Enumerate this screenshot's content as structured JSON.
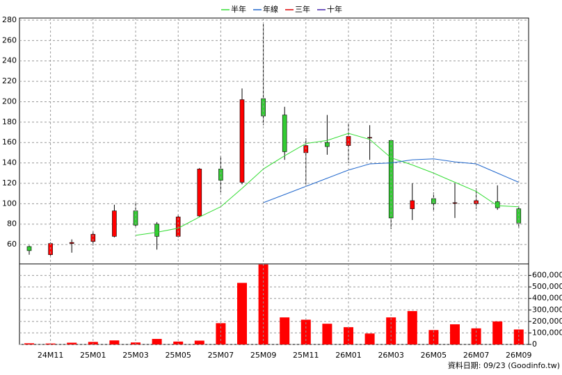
{
  "chart_data": [
    {
      "type": "candlestick",
      "open": [
        58,
        50,
        61,
        63,
        68,
        93,
        80,
        68,
        88,
        134,
        121,
        203,
        187,
        150,
        160,
        157,
        165,
        162,
        95,
        105,
        101,
        100,
        102,
        95
      ],
      "high": [
        59,
        62,
        65,
        73,
        99,
        101,
        82,
        89,
        135,
        147,
        213,
        276,
        195,
        164,
        187,
        180,
        177,
        162,
        120,
        111,
        120,
        115,
        118,
        97
      ],
      "low": [
        50,
        49,
        52,
        59,
        67,
        77,
        55,
        67,
        87,
        111,
        119,
        177,
        143,
        119,
        148,
        140,
        143,
        75,
        84,
        93,
        86,
        95,
        94,
        76
      ],
      "close": [
        54,
        61,
        62,
        70,
        93,
        79,
        68,
        87,
        134,
        123,
        202,
        186,
        151,
        157,
        156,
        166,
        165,
        86,
        103,
        100,
        101,
        103,
        96,
        81
      ],
      "up_color": "#ff0000",
      "down_color": "#33cc33",
      "series": [
        {
          "name": "半年",
          "color": "#33dd33",
          "values": [
            null,
            null,
            null,
            null,
            null,
            69,
            72,
            76,
            87,
            97,
            115,
            134,
            147,
            159,
            162,
            169,
            163,
            145,
            138,
            130,
            121,
            112,
            98,
            97
          ]
        },
        {
          "name": "年線",
          "color": "#1f66cc",
          "values": [
            null,
            null,
            null,
            null,
            null,
            null,
            null,
            null,
            null,
            null,
            null,
            101,
            109,
            117,
            125,
            133,
            139,
            140,
            143,
            144,
            141,
            139,
            130,
            121
          ]
        },
        {
          "name": "三年",
          "color": "#dd0000",
          "values": [
            null,
            null,
            null,
            null,
            null,
            null,
            null,
            null,
            null,
            null,
            null,
            null,
            null,
            null,
            null,
            null,
            null,
            null,
            null,
            null,
            null,
            null,
            null,
            null
          ]
        },
        {
          "name": "十年",
          "color": "#4422aa",
          "values": [
            null,
            null,
            null,
            null,
            null,
            null,
            null,
            null,
            null,
            null,
            null,
            null,
            null,
            null,
            null,
            null,
            null,
            null,
            null,
            null,
            null,
            null,
            null,
            null
          ]
        }
      ],
      "ylim": [
        41,
        282
      ],
      "yticks": [
        60,
        80,
        100,
        120,
        140,
        160,
        180,
        200,
        220,
        240,
        260,
        280
      ],
      "grid": true
    },
    {
      "type": "bar",
      "categories": [
        null,
        "24M11",
        null,
        "25M01",
        null,
        "25M03",
        null,
        "25M05",
        null,
        "25M07",
        null,
        "25M09",
        null,
        "25M11",
        null,
        "26M01",
        null,
        "26M03",
        null,
        "26M05",
        null,
        "26M07",
        null,
        "26M09"
      ],
      "values": [
        10000,
        8000,
        15000,
        22000,
        35000,
        17000,
        48000,
        25000,
        33000,
        185000,
        535000,
        695000,
        235000,
        215000,
        180000,
        150000,
        95000,
        235000,
        290000,
        125000,
        175000,
        140000,
        200000,
        130000
      ],
      "color": "#ff0000",
      "ylim": [
        0,
        700000
      ],
      "yticks": [
        0,
        {
          "value": 100000,
          "label": "100,000"
        },
        {
          "value": 200000,
          "label": "200,000"
        },
        {
          "value": 300000,
          "label": "300,000"
        },
        {
          "value": 400000,
          "label": "400,000"
        },
        {
          "value": 500000,
          "label": "500,000"
        },
        {
          "value": 600000,
          "label": "600,000"
        }
      ],
      "grid": true
    }
  ],
  "footer": "資料日期: 09/23 (Goodinfo.tw)"
}
